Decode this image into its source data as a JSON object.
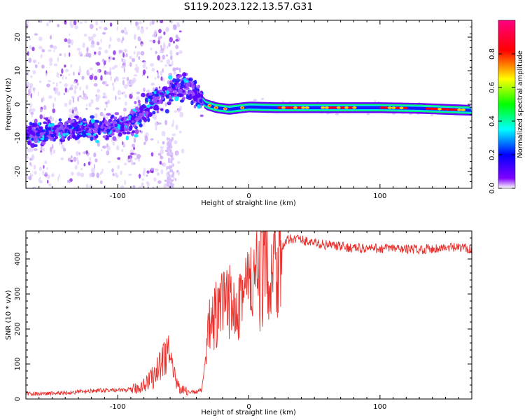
{
  "title": "S119.2023.122.13.57.G31",
  "chart_data": [
    {
      "type": "heatmap",
      "description": "Spectrogram-like amplitude map vs height of straight line",
      "xlabel": "Height of straight line (km)",
      "ylabel": "Frequency (Hz)",
      "xlim": [
        -170,
        170
      ],
      "ylim": [
        -25,
        25
      ],
      "xticks": [
        -100,
        0,
        100
      ],
      "yticks": [
        -20,
        -10,
        0,
        10,
        20
      ],
      "colorbar": {
        "label": "Normalized spectral amplitude",
        "range": [
          0.0,
          1.0
        ],
        "ticks": [
          0.0,
          0.2,
          0.4,
          0.6,
          0.8
        ],
        "colors": [
          "#ffffff",
          "#8000ff",
          "#0000ff",
          "#00ffff",
          "#00ff00",
          "#ffff00",
          "#ff0000",
          "#ff0080"
        ]
      },
      "ridge": {
        "x": [
          -170,
          -150,
          -130,
          -110,
          -95,
          -85,
          -75,
          -65,
          -55,
          -48,
          -40,
          -33,
          -25,
          -15,
          0,
          20,
          50,
          100,
          130,
          170
        ],
        "y": [
          -9,
          -8,
          -7,
          -7,
          -6.5,
          -4,
          0,
          3,
          5,
          5.5,
          3,
          0,
          -1,
          -1.5,
          -0.8,
          -1,
          -1,
          -1,
          -1.2,
          -1.8
        ]
      }
    },
    {
      "type": "line",
      "xlabel": "Height of straight line (km)",
      "ylabel": "SNR (10 * v/v)",
      "xlim": [
        -170,
        170
      ],
      "ylim": [
        0,
        480
      ],
      "xticks": [
        -100,
        0,
        100
      ],
      "yticks": [
        0,
        100,
        200,
        300,
        400
      ],
      "color": "#e8302c",
      "series": [
        {
          "x": [
            -170,
            -150,
            -130,
            -110,
            -95,
            -85,
            -75,
            -70,
            -65,
            -62,
            -58,
            -52,
            -46,
            -40,
            -36,
            -33,
            -30,
            -26,
            -22,
            -18,
            -14,
            -10,
            -5,
            0,
            5,
            10,
            15,
            20,
            25,
            30,
            35,
            40,
            50,
            60,
            70,
            80,
            90,
            100,
            110,
            120,
            130,
            140,
            150,
            160,
            170
          ],
          "y": [
            15,
            16,
            20,
            25,
            25,
            30,
            55,
            80,
            120,
            150,
            70,
            30,
            20,
            20,
            25,
            120,
            200,
            230,
            250,
            260,
            280,
            295,
            310,
            320,
            330,
            355,
            375,
            400,
            430,
            455,
            460,
            455,
            445,
            440,
            435,
            432,
            430,
            430,
            430,
            428,
            428,
            430,
            432,
            432,
            430
          ]
        }
      ]
    }
  ]
}
